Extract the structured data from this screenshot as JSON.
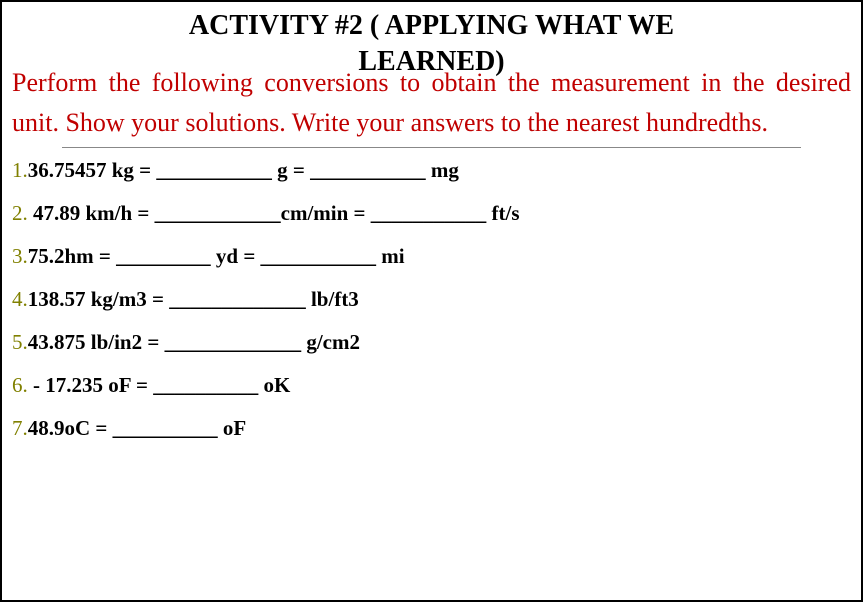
{
  "title_line1": "ACTIVITY #2  ( APPLYING WHAT WE",
  "title_line2": "LEARNED)",
  "instructions": "Perform the following conversions to obtain the measurement in the desired unit. Show your solutions. Write your answers to the nearest hundredths.",
  "items": [
    {
      "num": "1.",
      "text": "36.75457 kg =  ___________ g = ___________ mg"
    },
    {
      "num": "2.",
      "text": " 47.89 km/h  =   ____________cm/min = ___________ ft/s"
    },
    {
      "num": "3.",
      "text": "75.2hm  =  _________ yd =  ___________ mi"
    },
    {
      "num": "4.",
      "text": "138.57 kg/m3  = _____________ lb/ft3"
    },
    {
      "num": "5.",
      "text": "43.875 lb/in2  =  _____________ g/cm2"
    },
    {
      "num": "6.",
      "text": " - 17.235 oF  =  __________ oK"
    },
    {
      "num": "7.",
      "text": "48.9oC = __________ oF"
    }
  ],
  "colors": {
    "title": "#000000",
    "instruction": "#c00000",
    "number": "#808000",
    "text": "#000000",
    "border": "#000000",
    "hr": "#888888"
  }
}
